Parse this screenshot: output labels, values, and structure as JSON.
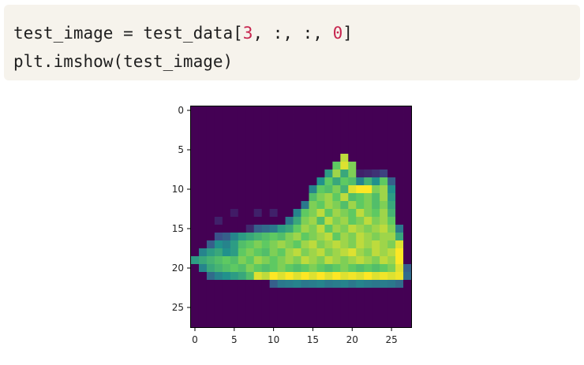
{
  "code_cell": {
    "line1": [
      {
        "text": "test_image = test_data[",
        "kind": "plain"
      },
      {
        "text": "3",
        "kind": "num"
      },
      {
        "text": ", :, :, ",
        "kind": "plain"
      },
      {
        "text": "0",
        "kind": "num"
      },
      {
        "text": "]",
        "kind": "plain"
      }
    ],
    "line2": [
      {
        "text": "plt.imshow(test_image)",
        "kind": "plain"
      }
    ]
  },
  "chart_data": {
    "type": "heatmap",
    "title": "",
    "xlabel": "",
    "ylabel": "",
    "colormap": "viridis",
    "shape": [
      28,
      28
    ],
    "xticks": [
      "0",
      "5",
      "10",
      "15",
      "20",
      "25"
    ],
    "yticks": [
      "0",
      "5",
      "10",
      "15",
      "20",
      "25"
    ],
    "xlim": [
      -0.5,
      27.5
    ],
    "ylim": [
      27.5,
      -0.5
    ],
    "value_range": [
      0,
      1
    ],
    "rows": [
      [
        0,
        0,
        0,
        0,
        0,
        0,
        0,
        0,
        0,
        0,
        0,
        0,
        0,
        0,
        0,
        0,
        0,
        0,
        0,
        0,
        0,
        0,
        0,
        0,
        0,
        0,
        0,
        0
      ],
      [
        0,
        0,
        0,
        0,
        0,
        0,
        0,
        0,
        0,
        0,
        0,
        0,
        0,
        0,
        0,
        0,
        0,
        0,
        0,
        0,
        0,
        0,
        0,
        0,
        0,
        0,
        0,
        0
      ],
      [
        0,
        0,
        0,
        0,
        0,
        0,
        0,
        0,
        0,
        0,
        0,
        0,
        0,
        0,
        0,
        0,
        0,
        0,
        0,
        0,
        0,
        0,
        0,
        0,
        0,
        0,
        0,
        0
      ],
      [
        0,
        0,
        0,
        0,
        0,
        0,
        0,
        0,
        0,
        0,
        0,
        0,
        0,
        0,
        0,
        0,
        0,
        0,
        0,
        0,
        0,
        0,
        0,
        0,
        0,
        0,
        0,
        0
      ],
      [
        0,
        0,
        0,
        0,
        0,
        0,
        0,
        0,
        0,
        0,
        0,
        0,
        0,
        0,
        0,
        0,
        0,
        0,
        0,
        0,
        0,
        0,
        0,
        0,
        0,
        0,
        0,
        0
      ],
      [
        0,
        0,
        0,
        0,
        0,
        0,
        0,
        0,
        0,
        0,
        0,
        0,
        0,
        0,
        0,
        0,
        0,
        0,
        0,
        0,
        0,
        0,
        0,
        0,
        0,
        0,
        0,
        0
      ],
      [
        0,
        0,
        0,
        0,
        0,
        0,
        0,
        0,
        0,
        0,
        0,
        0,
        0,
        0,
        0,
        0,
        0,
        0,
        0,
        0.9,
        0,
        0,
        0,
        0,
        0,
        0,
        0,
        0
      ],
      [
        0,
        0,
        0,
        0,
        0,
        0,
        0,
        0,
        0,
        0,
        0,
        0,
        0,
        0,
        0,
        0,
        0,
        0,
        0.75,
        0.95,
        0.8,
        0,
        0,
        0,
        0,
        0,
        0,
        0
      ],
      [
        0,
        0,
        0,
        0,
        0,
        0,
        0,
        0,
        0,
        0,
        0,
        0,
        0,
        0,
        0,
        0,
        0,
        0.55,
        0.85,
        0.6,
        0.8,
        0.1,
        0.12,
        0.15,
        0.2,
        0,
        0,
        0
      ],
      [
        0,
        0,
        0,
        0,
        0,
        0,
        0,
        0,
        0,
        0,
        0,
        0,
        0,
        0,
        0,
        0,
        0.5,
        0.75,
        0.6,
        0.75,
        0.7,
        0.45,
        0.65,
        0.5,
        0.75,
        0.3,
        0,
        0
      ],
      [
        0,
        0,
        0,
        0,
        0,
        0,
        0,
        0,
        0,
        0,
        0,
        0,
        0,
        0,
        0,
        0.45,
        0.75,
        0.7,
        0.8,
        0.65,
        0.95,
        1,
        1,
        0.8,
        0.85,
        0.5,
        0,
        0
      ],
      [
        0,
        0,
        0,
        0,
        0,
        0,
        0,
        0,
        0,
        0,
        0,
        0,
        0,
        0,
        0,
        0.7,
        0.8,
        0.85,
        0.75,
        0.9,
        0.7,
        0.75,
        0.8,
        0.7,
        0.85,
        0.55,
        0,
        0
      ],
      [
        0,
        0,
        0,
        0,
        0,
        0,
        0,
        0,
        0,
        0,
        0,
        0,
        0,
        0,
        0.4,
        0.8,
        0.75,
        0.85,
        0.8,
        0.7,
        0.85,
        0.75,
        0.8,
        0.7,
        0.8,
        0.6,
        0,
        0
      ],
      [
        0,
        0,
        0,
        0,
        0,
        0.08,
        0,
        0,
        0.1,
        0,
        0.1,
        0,
        0,
        0.45,
        0.75,
        0.8,
        0.9,
        0.75,
        0.85,
        0.8,
        0.75,
        0.9,
        0.8,
        0.75,
        0.85,
        0.65,
        0,
        0
      ],
      [
        0,
        0,
        0,
        0.1,
        0,
        0,
        0,
        0,
        0,
        0,
        0,
        0,
        0.4,
        0.6,
        0.8,
        0.85,
        0.7,
        0.9,
        0.8,
        0.85,
        0.75,
        0.8,
        0.9,
        0.8,
        0.85,
        0.75,
        0,
        0
      ],
      [
        0,
        0,
        0,
        0,
        0,
        0,
        0,
        0.12,
        0.3,
        0.35,
        0.4,
        0.55,
        0.6,
        0.75,
        0.85,
        0.8,
        0.9,
        0.75,
        0.85,
        0.8,
        0.9,
        0.85,
        0.8,
        0.85,
        0.9,
        0.8,
        0.4,
        0
      ],
      [
        0,
        0,
        0,
        0.25,
        0.3,
        0.45,
        0.55,
        0.6,
        0.65,
        0.7,
        0.75,
        0.7,
        0.8,
        0.85,
        0.75,
        0.8,
        0.85,
        0.9,
        0.75,
        0.85,
        0.8,
        0.9,
        0.85,
        0.8,
        0.85,
        0.85,
        0.6,
        0
      ],
      [
        0,
        0,
        0.3,
        0.5,
        0.45,
        0.55,
        0.7,
        0.75,
        0.8,
        0.75,
        0.8,
        0.85,
        0.8,
        0.75,
        0.85,
        0.9,
        0.8,
        0.85,
        0.9,
        0.85,
        0.8,
        0.9,
        0.85,
        0.9,
        0.85,
        0.8,
        0.95,
        0
      ],
      [
        0,
        0.45,
        0.55,
        0.6,
        0.5,
        0.55,
        0.75,
        0.8,
        0.75,
        0.7,
        0.8,
        0.75,
        0.85,
        0.9,
        0.8,
        0.85,
        0.9,
        0.8,
        0.85,
        0.9,
        0.95,
        0.85,
        0.8,
        0.9,
        0.85,
        0.9,
        1,
        0
      ],
      [
        0.55,
        0.6,
        0.65,
        0.7,
        0.75,
        0.7,
        0.8,
        0.75,
        0.85,
        0.8,
        0.75,
        0.8,
        0.85,
        0.8,
        0.9,
        0.85,
        0.8,
        0.9,
        0.85,
        0.8,
        0.85,
        0.9,
        0.85,
        0.8,
        0.9,
        0.85,
        1,
        0
      ],
      [
        0,
        0.45,
        0.6,
        0.65,
        0.7,
        0.75,
        0.7,
        0.8,
        0.75,
        0.7,
        0.75,
        0.8,
        0.75,
        0.7,
        0.75,
        0.8,
        0.75,
        0.7,
        0.75,
        0.8,
        0.75,
        0.7,
        0.75,
        0.7,
        0.75,
        0.8,
        0.95,
        0.3
      ],
      [
        0,
        0,
        0.35,
        0.45,
        0.5,
        0.55,
        0.6,
        0.7,
        0.95,
        0.9,
        1,
        0.95,
        1,
        0.95,
        1,
        0.95,
        1,
        0.95,
        1,
        0.95,
        0.98,
        0.95,
        1,
        0.95,
        0.98,
        0.95,
        0.98,
        0.35
      ],
      [
        0,
        0,
        0,
        0,
        0,
        0,
        0,
        0,
        0,
        0,
        0.3,
        0.4,
        0.42,
        0.45,
        0.4,
        0.42,
        0.45,
        0.4,
        0.42,
        0.45,
        0.4,
        0.45,
        0.42,
        0.4,
        0.42,
        0.4,
        0.35,
        0
      ],
      [
        0,
        0,
        0,
        0,
        0,
        0,
        0,
        0,
        0,
        0,
        0,
        0,
        0,
        0,
        0,
        0,
        0,
        0,
        0,
        0,
        0,
        0,
        0,
        0,
        0,
        0,
        0,
        0
      ],
      [
        0,
        0,
        0,
        0,
        0,
        0,
        0,
        0,
        0,
        0,
        0,
        0,
        0,
        0,
        0,
        0,
        0,
        0,
        0,
        0,
        0,
        0,
        0,
        0,
        0,
        0,
        0,
        0
      ],
      [
        0,
        0,
        0,
        0,
        0,
        0,
        0,
        0,
        0,
        0,
        0,
        0,
        0,
        0,
        0,
        0,
        0,
        0,
        0,
        0,
        0,
        0,
        0,
        0,
        0,
        0,
        0,
        0
      ],
      [
        0,
        0,
        0,
        0,
        0,
        0,
        0,
        0,
        0,
        0,
        0,
        0,
        0,
        0,
        0,
        0,
        0,
        0,
        0,
        0,
        0,
        0,
        0,
        0,
        0,
        0,
        0,
        0
      ],
      [
        0,
        0,
        0,
        0,
        0,
        0,
        0,
        0,
        0,
        0,
        0,
        0,
        0,
        0,
        0,
        0,
        0,
        0,
        0,
        0,
        0,
        0,
        0,
        0,
        0,
        0,
        0,
        0
      ]
    ]
  }
}
